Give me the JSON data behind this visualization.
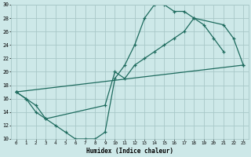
{
  "xlabel": "Humidex (Indice chaleur)",
  "bg_color": "#cde8e8",
  "grid_color": "#a8c8c8",
  "line_color": "#1e6b5e",
  "line1_x": [
    0,
    1,
    2,
    3,
    4,
    5,
    6,
    7,
    8,
    9,
    10,
    11,
    12,
    13,
    14,
    15,
    16,
    17,
    18,
    19,
    20,
    21
  ],
  "line1_y": [
    17,
    16,
    15,
    13,
    12,
    11,
    10,
    10,
    10,
    11,
    19,
    21,
    24,
    28,
    30,
    30,
    29,
    29,
    28,
    27,
    25,
    23
  ],
  "line2_x": [
    0,
    1,
    2,
    3,
    9,
    10,
    11,
    12,
    13,
    14,
    15,
    16,
    17,
    18,
    21,
    22,
    23
  ],
  "line2_y": [
    17,
    16,
    14,
    13,
    15,
    20,
    19,
    21,
    22,
    23,
    24,
    25,
    26,
    28,
    27,
    25,
    21
  ],
  "line3_x": [
    0,
    23
  ],
  "line3_y": [
    17,
    21
  ],
  "xlim": [
    -0.5,
    23.5
  ],
  "ylim": [
    10,
    30
  ],
  "yticks": [
    10,
    12,
    14,
    16,
    18,
    20,
    22,
    24,
    26,
    28,
    30
  ],
  "xticks": [
    0,
    1,
    2,
    3,
    4,
    5,
    6,
    7,
    8,
    9,
    10,
    11,
    12,
    13,
    14,
    15,
    16,
    17,
    18,
    19,
    20,
    21,
    22,
    23
  ],
  "xtick_labels": [
    "0",
    "1",
    "2",
    "3",
    "4",
    "5",
    "6",
    "7",
    "8",
    "9",
    "10",
    "11",
    "12",
    "13",
    "14",
    "15",
    "16",
    "17",
    "18",
    "19",
    "20",
    "21",
    "22",
    "23"
  ]
}
